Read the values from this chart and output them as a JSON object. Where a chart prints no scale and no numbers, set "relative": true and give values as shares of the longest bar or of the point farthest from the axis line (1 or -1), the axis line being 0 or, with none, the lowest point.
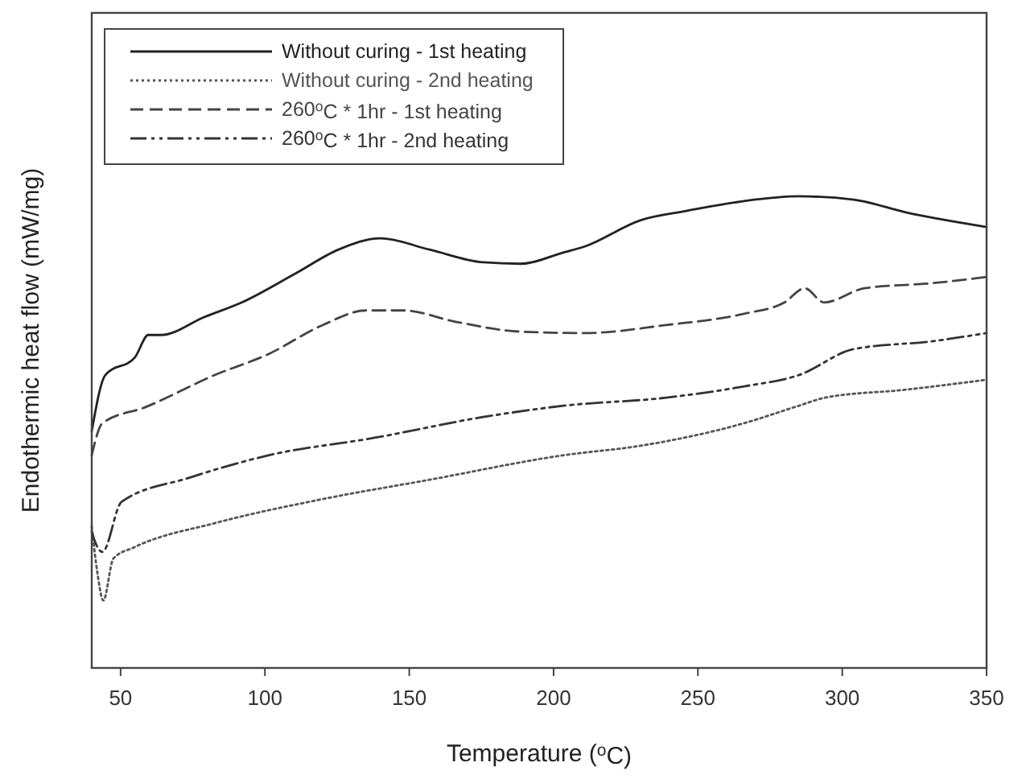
{
  "chart_data": {
    "type": "line",
    "xlabel": "Temperature ($^{o}$C)",
    "ylabel": "Endothermic heat flow (mW/mg)",
    "relative": true,
    "xlim": [
      40,
      350
    ],
    "xticks": [
      50,
      100,
      150,
      200,
      250,
      300,
      350
    ],
    "tick_labels": "x",
    "grid": false,
    "legend": "top left",
    "series": [
      {
        "name": "Without curing - 1st heating",
        "color": "#222222",
        "line_style": "solid",
        "x": [
          40,
          44.7,
          55,
          59.6,
          64,
          79,
          92,
          110.5,
          125.5,
          140,
          157,
          175.6,
          188.5,
          203.5,
          211,
          230,
          246,
          266,
          285,
          304,
          322,
          350
        ],
        "values": [
          0.502,
          0.621,
          0.659,
          0.706,
          0.706,
          0.744,
          0.775,
          0.836,
          0.887,
          0.911,
          0.887,
          0.86,
          0.857,
          0.881,
          0.894,
          0.949,
          0.969,
          0.99,
          1.0,
          0.993,
          0.966,
          0.935
        ]
      },
      {
        "name": "Without curing - 2nd heating",
        "color": "#555555",
        "line_style": "dotted",
        "x": [
          40,
          42,
          44,
          47.5,
          54.8,
          82.6,
          120,
          157,
          203.5,
          230,
          266,
          285,
          294,
          322,
          350
        ],
        "values": [
          0.3,
          0.2,
          0.143,
          0.232,
          0.256,
          0.307,
          0.358,
          0.399,
          0.451,
          0.471,
          0.519,
          0.556,
          0.573,
          0.59,
          0.611
        ]
      },
      {
        "name": "260$^{o}$C * 1hr - 1st heating",
        "color": "#444444",
        "line_style": "dashed",
        "x": [
          40,
          43.7,
          58.6,
          82.6,
          101.4,
          120,
          135,
          148,
          166,
          188.5,
          211,
          239,
          266,
          280,
          287,
          293.7,
          307.7,
          331.6,
          350
        ],
        "values": [
          0.451,
          0.519,
          0.553,
          0.621,
          0.666,
          0.727,
          0.758,
          0.758,
          0.734,
          0.713,
          0.71,
          0.727,
          0.751,
          0.775,
          0.805,
          0.775,
          0.805,
          0.816,
          0.829
        ]
      },
      {
        "name": "260$^{o}$C * 1hr - 2nd heating",
        "color": "#333333",
        "line_style": "dashdot",
        "x": [
          40,
          41,
          43.7,
          50.3,
          73.6,
          101.4,
          138,
          175.6,
          203.5,
          239,
          266,
          285,
          304,
          331.6,
          350
        ],
        "values": [
          0.29,
          0.27,
          0.246,
          0.352,
          0.403,
          0.451,
          0.488,
          0.532,
          0.556,
          0.573,
          0.597,
          0.621,
          0.676,
          0.693,
          0.71
        ]
      }
    ]
  }
}
